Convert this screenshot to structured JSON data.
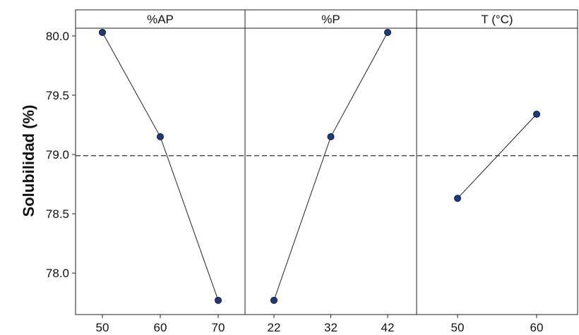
{
  "chart_data": {
    "type": "line",
    "ylabel": "Solubilidad (%)",
    "ylim": [
      77.65,
      80.22
    ],
    "y_ticks": [
      "78.0",
      "78.5",
      "79.0",
      "79.5",
      "80.0"
    ],
    "reference_line": {
      "value": 78.99,
      "style": "dashed"
    },
    "grid": false,
    "colors": {
      "marker_fill": "#1f3a7a",
      "marker_stroke": "#0a1a40",
      "line": "#222222",
      "frame": "#222222"
    },
    "panels": [
      {
        "title": "%AP",
        "x": [
          "50",
          "60",
          "70"
        ],
        "y": [
          80.03,
          79.15,
          77.77
        ]
      },
      {
        "title": "%P",
        "x": [
          "22",
          "32",
          "42"
        ],
        "y": [
          77.77,
          79.15,
          80.03
        ]
      },
      {
        "title": "T (°C)",
        "x": [
          "50",
          "60"
        ],
        "y": [
          78.63,
          79.34
        ]
      }
    ]
  }
}
